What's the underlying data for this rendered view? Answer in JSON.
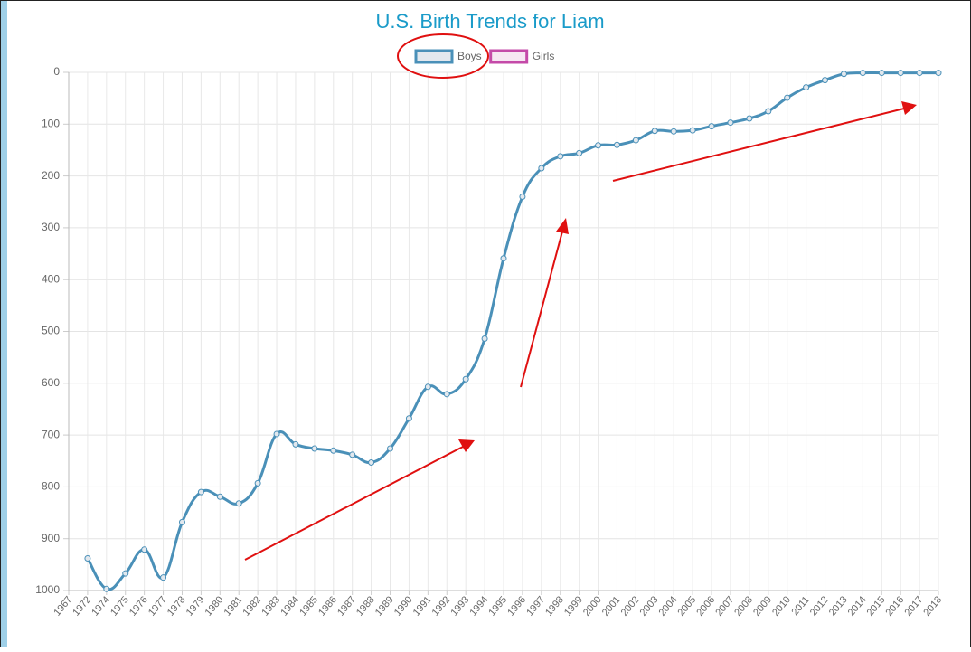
{
  "chart_data": {
    "type": "line",
    "title": "U.S. Birth Trends for Liam",
    "categories": [
      "1967",
      "1972",
      "1974",
      "1975",
      "1976",
      "1977",
      "1978",
      "1979",
      "1980",
      "1981",
      "1982",
      "1983",
      "1984",
      "1985",
      "1986",
      "1987",
      "1988",
      "1989",
      "1990",
      "1991",
      "1992",
      "1993",
      "1994",
      "1995",
      "1996",
      "1997",
      "1998",
      "1999",
      "2000",
      "2001",
      "2002",
      "2003",
      "2004",
      "2005",
      "2006",
      "2007",
      "2008",
      "2009",
      "2010",
      "2011",
      "2012",
      "2013",
      "2014",
      "2015",
      "2016",
      "2017",
      "2018"
    ],
    "series": [
      {
        "name": "Boys",
        "color": "#4a90b8",
        "fill": "#e2e8ee",
        "values": [
          null,
          938,
          997,
          967,
          921,
          975,
          868,
          810,
          819,
          832,
          793,
          698,
          718,
          726,
          730,
          738,
          753,
          726,
          668,
          607,
          621,
          592,
          514,
          359,
          240,
          185,
          162,
          156,
          141,
          140,
          131,
          113,
          114,
          112,
          104,
          97,
          89,
          75,
          49,
          29,
          15,
          3,
          1,
          1,
          1,
          1,
          1
        ]
      },
      {
        "name": "Girls",
        "color": "#c44aa8",
        "fill": "#f6e6f2",
        "values": [
          null,
          null,
          null,
          null,
          null,
          null,
          null,
          null,
          null,
          null,
          null,
          null,
          null,
          null,
          null,
          null,
          null,
          null,
          null,
          null,
          null,
          null,
          null,
          null,
          null,
          null,
          null,
          null,
          null,
          null,
          null,
          null,
          null,
          null,
          null,
          null,
          null,
          null,
          null,
          null,
          null,
          null,
          null,
          null,
          null,
          null,
          null
        ]
      }
    ],
    "ylim": [
      0,
      1000
    ],
    "yticks": [
      0,
      100,
      200,
      300,
      400,
      500,
      600,
      700,
      800,
      900,
      1000
    ],
    "y_reversed": true,
    "grid": true,
    "legend": "top"
  }
}
